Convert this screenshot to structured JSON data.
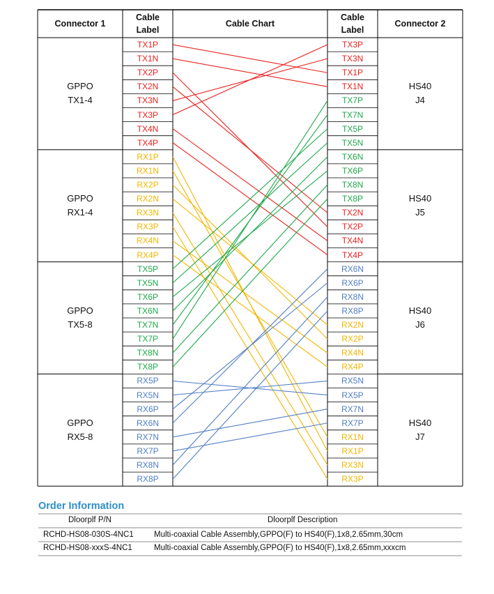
{
  "headers": {
    "connector_1": "Connector 1",
    "cable_label_left": [
      "Cable",
      "Label"
    ],
    "cable_chart": "Cable Chart",
    "cable_label_right": [
      "Cable",
      "Label"
    ],
    "connector_2": "Connector 2"
  },
  "colors": {
    "tx_red": "#e8211d",
    "rx_yellow": "#f2b600",
    "tx_green": "#1ea84a",
    "rx_blue": "#4f7ec2",
    "order_title": "#2e8fc7"
  },
  "left_groups": [
    {
      "line1": "GPPO",
      "line2": "TX1-4"
    },
    {
      "line1": "GPPO",
      "line2": "RX1-4"
    },
    {
      "line1": "GPPO",
      "line2": "TX5-8"
    },
    {
      "line1": "GPPO",
      "line2": "RX5-8"
    }
  ],
  "right_groups": [
    {
      "line1": "HS40",
      "line2": "J4"
    },
    {
      "line1": "HS40",
      "line2": "J5"
    },
    {
      "line1": "HS40",
      "line2": "J6"
    },
    {
      "line1": "HS40",
      "line2": "J7"
    }
  ],
  "left_labels": [
    {
      "text": "TX1P",
      "c": "red"
    },
    {
      "text": "TX1N",
      "c": "red"
    },
    {
      "text": "TX2P",
      "c": "red"
    },
    {
      "text": "TX2N",
      "c": "red"
    },
    {
      "text": "TX3N",
      "c": "red"
    },
    {
      "text": "TX3P",
      "c": "red"
    },
    {
      "text": "TX4N",
      "c": "red"
    },
    {
      "text": "TX4P",
      "c": "red"
    },
    {
      "text": "RX1P",
      "c": "yellow"
    },
    {
      "text": "RX1N",
      "c": "yellow"
    },
    {
      "text": "RX2P",
      "c": "yellow"
    },
    {
      "text": "RX2N",
      "c": "yellow"
    },
    {
      "text": "RX3N",
      "c": "yellow"
    },
    {
      "text": "RX3P",
      "c": "yellow"
    },
    {
      "text": "RX4N",
      "c": "yellow"
    },
    {
      "text": "RX4P",
      "c": "yellow"
    },
    {
      "text": "TX5P",
      "c": "green"
    },
    {
      "text": "TX5N",
      "c": "green"
    },
    {
      "text": "TX6P",
      "c": "green"
    },
    {
      "text": "TX6N",
      "c": "green"
    },
    {
      "text": "TX7N",
      "c": "green"
    },
    {
      "text": "TX7P",
      "c": "green"
    },
    {
      "text": "TX8N",
      "c": "green"
    },
    {
      "text": "TX8P",
      "c": "green"
    },
    {
      "text": "RX5P",
      "c": "blue"
    },
    {
      "text": "RX5N",
      "c": "blue"
    },
    {
      "text": "RX6P",
      "c": "blue"
    },
    {
      "text": "RX6N",
      "c": "blue"
    },
    {
      "text": "RX7N",
      "c": "blue"
    },
    {
      "text": "RX7P",
      "c": "blue"
    },
    {
      "text": "RX8N",
      "c": "blue"
    },
    {
      "text": "RX8P",
      "c": "blue"
    }
  ],
  "right_labels": [
    {
      "text": "TX3P",
      "c": "red"
    },
    {
      "text": "TX3N",
      "c": "red"
    },
    {
      "text": "TX1P",
      "c": "red"
    },
    {
      "text": "TX1N",
      "c": "red"
    },
    {
      "text": "TX7P",
      "c": "green"
    },
    {
      "text": "TX7N",
      "c": "green"
    },
    {
      "text": "TX5P",
      "c": "green"
    },
    {
      "text": "TX5N",
      "c": "green"
    },
    {
      "text": "TX6N",
      "c": "green"
    },
    {
      "text": "TX6P",
      "c": "green"
    },
    {
      "text": "TX8N",
      "c": "green"
    },
    {
      "text": "TX8P",
      "c": "green"
    },
    {
      "text": "TX2N",
      "c": "red"
    },
    {
      "text": "TX2P",
      "c": "red"
    },
    {
      "text": "TX4N",
      "c": "red"
    },
    {
      "text": "TX4P",
      "c": "red"
    },
    {
      "text": "RX6N",
      "c": "blue"
    },
    {
      "text": "RX6P",
      "c": "blue"
    },
    {
      "text": "RX8N",
      "c": "blue"
    },
    {
      "text": "RX8P",
      "c": "blue"
    },
    {
      "text": "RX2N",
      "c": "yellow"
    },
    {
      "text": "RX2P",
      "c": "yellow"
    },
    {
      "text": "RX4N",
      "c": "yellow"
    },
    {
      "text": "RX4P",
      "c": "yellow"
    },
    {
      "text": "RX5N",
      "c": "blue"
    },
    {
      "text": "RX5P",
      "c": "blue"
    },
    {
      "text": "RX7N",
      "c": "blue"
    },
    {
      "text": "RX7P",
      "c": "blue"
    },
    {
      "text": "RX1N",
      "c": "yellow"
    },
    {
      "text": "RX1P",
      "c": "yellow"
    },
    {
      "text": "RX3N",
      "c": "yellow"
    },
    {
      "text": "RX3P",
      "c": "yellow"
    }
  ],
  "order": {
    "title": "Order Information",
    "col_pn": "Dloorplf P/N",
    "col_desc": "Dloorplf Description",
    "rows": [
      {
        "pn": "RCHD-HS08-030S-4NC1",
        "desc": "Multi-coaxial Cable Assembly,GPPO(F) to HS40(F),1x8,2.65mm,30cm"
      },
      {
        "pn": "RCHD-HS08-xxxS-4NC1",
        "desc": "Multi-coaxial Cable Assembly,GPPO(F) to HS40(F),1x8,2.65mm,xxxcm"
      }
    ]
  }
}
